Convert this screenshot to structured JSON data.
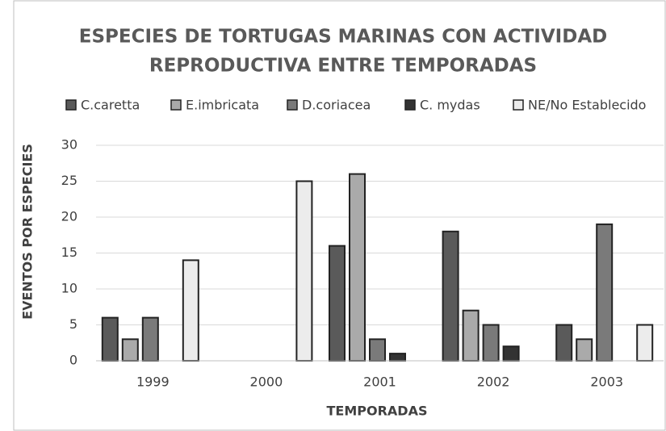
{
  "chart_data": {
    "type": "bar",
    "title": [
      "ESPECIES DE TORTUGAS MARINAS CON ACTIVIDAD",
      "REPRODUCTIVA ENTRE TEMPORADAS"
    ],
    "x_label": "TEMPORADAS",
    "y_label": "EVENTOS POR ESPECIES",
    "categories": [
      "1999",
      "2000",
      "2001",
      "2002",
      "2003"
    ],
    "series": [
      {
        "name": "C.caretta",
        "color": "#5a5a5a",
        "values": [
          6,
          0,
          16,
          18,
          5
        ]
      },
      {
        "name": "E.imbricata",
        "color": "#aaaaaa",
        "values": [
          3,
          0,
          26,
          7,
          3
        ]
      },
      {
        "name": "D.coriacea",
        "color": "#7a7a7a",
        "values": [
          6,
          0,
          3,
          5,
          19
        ]
      },
      {
        "name": "C. mydas",
        "color": "#333333",
        "values": [
          0,
          0,
          1,
          2,
          0
        ]
      },
      {
        "name": "NE/No Establecido",
        "color": "#ececec",
        "values": [
          14,
          25,
          0,
          0,
          5
        ]
      }
    ],
    "ylim": [
      0,
      30
    ],
    "yticks": [
      0,
      5,
      10,
      15,
      20,
      25,
      30
    ],
    "grid": true,
    "legend": "top"
  }
}
